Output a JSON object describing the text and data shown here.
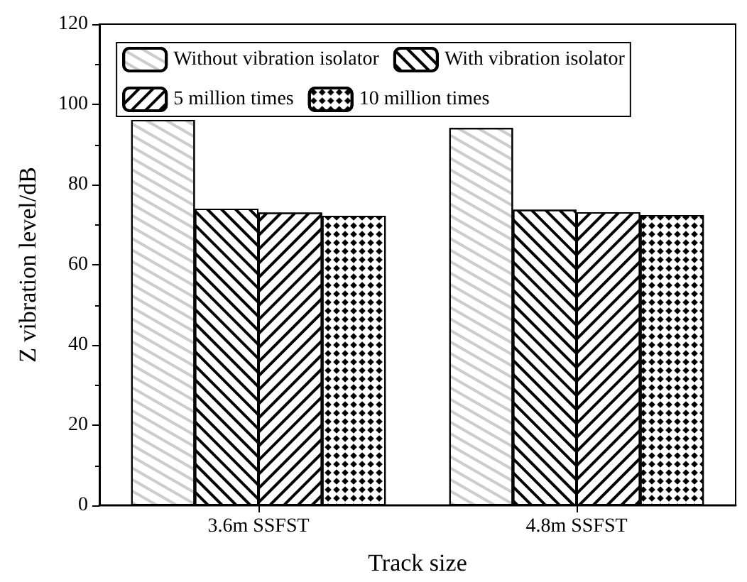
{
  "chart_data": {
    "type": "bar",
    "xlabel": "Track size",
    "ylabel": "Z vibration level/dB",
    "categories": [
      "3.6m SSFST",
      "4.8m SSFST"
    ],
    "series": [
      {
        "name": "Without vibration isolator",
        "color": "#ffffff",
        "values": [
          96.1,
          94.1
        ]
      },
      {
        "name": "With vibration isolator",
        "color": "#ffffff",
        "values": [
          74.0,
          73.7
        ]
      },
      {
        "name": "5 million times",
        "color": "#ffffff",
        "values": [
          73.0,
          73.1
        ]
      },
      {
        "name": "10 million times",
        "color": "#ffffff",
        "values": [
          72.2,
          72.4
        ]
      }
    ],
    "ylim": [
      0,
      120
    ],
    "yticks": [
      0,
      20,
      40,
      60,
      80,
      100,
      120
    ],
    "grid": false,
    "legend": "top"
  }
}
